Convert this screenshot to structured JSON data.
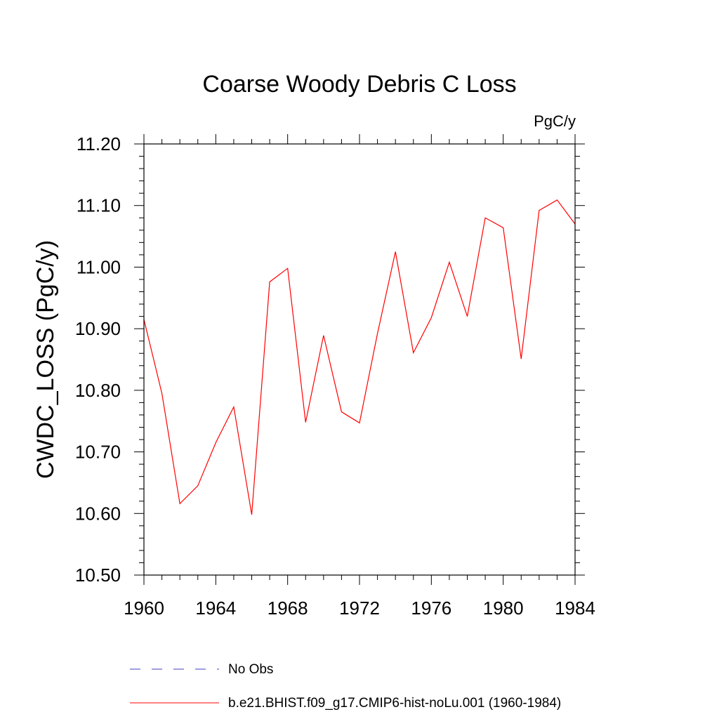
{
  "chart_data": {
    "type": "line",
    "title": "Coarse Woody Debris C Loss",
    "units_label": "PgC/y",
    "ylabel": "CWDC_LOSS  (PgC/y)",
    "xlabel": "",
    "xlim": [
      1960,
      1984
    ],
    "ylim": [
      10.5,
      11.2
    ],
    "x_ticks": [
      1960,
      1964,
      1968,
      1972,
      1976,
      1980,
      1984
    ],
    "y_ticks": [
      "10.50",
      "10.60",
      "10.70",
      "10.80",
      "10.90",
      "11.00",
      "11.10",
      "11.20"
    ],
    "series": [
      {
        "name": "b.e21.BHIST.f09_g17.CMIP6-hist-noLu.001 (1960-1984)",
        "color": "#ff0000",
        "style": "solid",
        "x": [
          1960,
          1961,
          1962,
          1963,
          1964,
          1965,
          1966,
          1967,
          1968,
          1969,
          1970,
          1971,
          1972,
          1973,
          1974,
          1975,
          1976,
          1977,
          1978,
          1979,
          1980,
          1981,
          1982,
          1983,
          1984
        ],
        "values": [
          10.915,
          10.795,
          10.616,
          10.645,
          10.715,
          10.773,
          10.598,
          10.976,
          10.998,
          10.748,
          10.889,
          10.765,
          10.747,
          10.892,
          11.025,
          10.861,
          10.918,
          11.008,
          10.92,
          11.08,
          11.064,
          10.851,
          11.092,
          11.109,
          11.07
        ]
      }
    ],
    "legend": [
      {
        "label": "No Obs",
        "color": "#6666cc",
        "style": "dashed"
      },
      {
        "label": "b.e21.BHIST.f09_g17.CMIP6-hist-noLu.001 (1960-1984)",
        "color": "#ff0000",
        "style": "solid"
      }
    ]
  }
}
